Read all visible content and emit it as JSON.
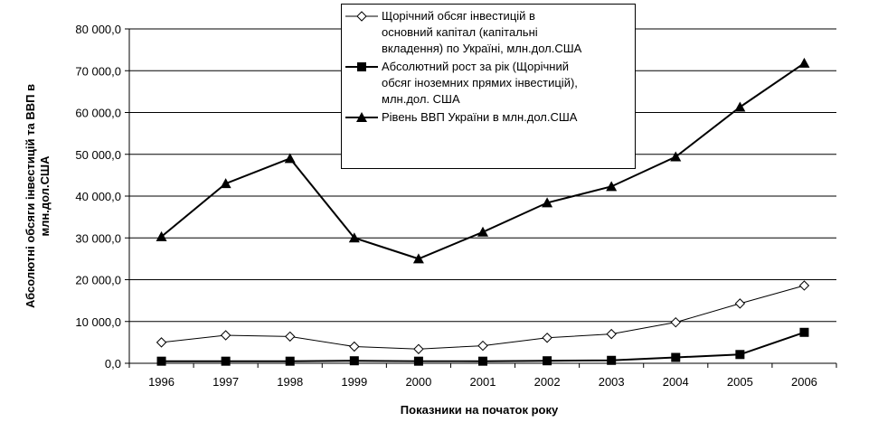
{
  "chart_data": {
    "type": "line",
    "title": "",
    "xlabel": "Показники на початок року",
    "ylabel": "Абсолютні обсяги інвестицій та ВВП в млн.дол.США",
    "ylim": [
      0,
      80000
    ],
    "y_ticks": [
      0,
      10000,
      20000,
      30000,
      40000,
      50000,
      60000,
      70000,
      80000
    ],
    "y_tick_labels": [
      "0,0",
      "10 000,0",
      "20 000,0",
      "30 000,0",
      "40 000,0",
      "50 000,0",
      "60 000,0",
      "70 000,0",
      "80 000,0"
    ],
    "categories": [
      "1996",
      "1997",
      "1998",
      "1999",
      "2000",
      "2001",
      "2002",
      "2003",
      "2004",
      "2005",
      "2006"
    ],
    "grid": "horizontal",
    "legend_position": "top-center",
    "series": [
      {
        "name": "Щорічний обсяг інвестицій в\nосновний капітал (капітальні\nвкладення) по Україні, млн.дол.США",
        "marker": "diamond-open",
        "color": "#000000",
        "values": [
          5000,
          6700,
          6400,
          4000,
          3400,
          4200,
          6100,
          7000,
          9800,
          14300,
          18600
        ]
      },
      {
        "name": "Абсолютний рост за рік (Щорічний\nобсяг іноземних прямих інвестицій),\nмлн.дол. США",
        "marker": "square-filled",
        "color": "#000000",
        "values": [
          500,
          500,
          500,
          600,
          500,
          500,
          600,
          700,
          1400,
          2100,
          7400
        ]
      },
      {
        "name": "Рівень ВВП України в млн.дол.США",
        "marker": "triangle-filled",
        "color": "#000000",
        "values": [
          30300,
          43000,
          49000,
          30000,
          25000,
          31400,
          38400,
          42300,
          49400,
          61300,
          71800
        ]
      }
    ]
  }
}
